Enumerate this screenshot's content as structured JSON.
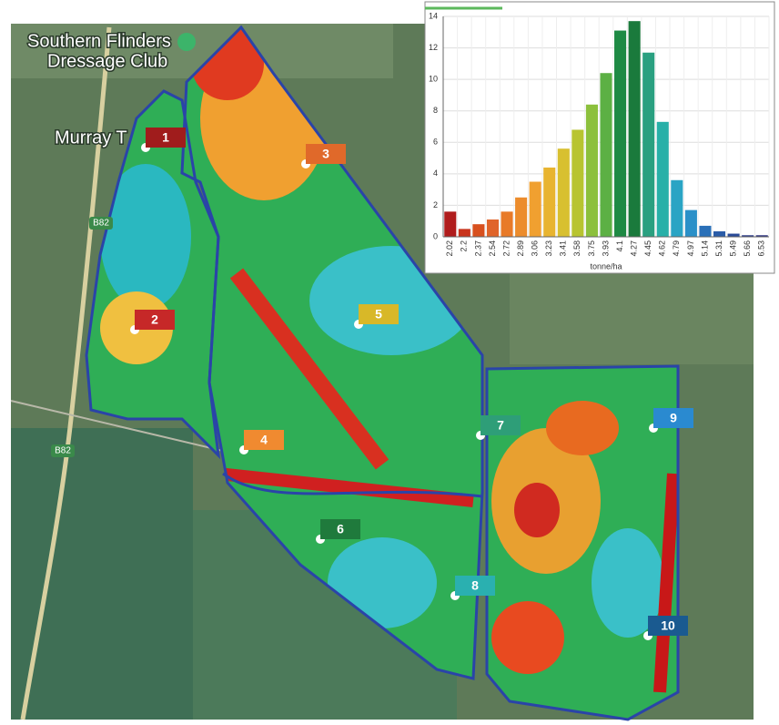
{
  "map": {
    "place_lines": [
      "Southern Flinders",
      "Dressage Club"
    ],
    "town": "Murray T",
    "roads": [
      "B82",
      "B82"
    ],
    "markers": [
      {
        "label": "1",
        "color": "#a01c1c"
      },
      {
        "label": "2",
        "color": "#c62828"
      },
      {
        "label": "3",
        "color": "#e0692a"
      },
      {
        "label": "4",
        "color": "#f08a30"
      },
      {
        "label": "5",
        "color": "#d8b828"
      },
      {
        "label": "6",
        "color": "#1f7a3c"
      },
      {
        "label": "7",
        "color": "#2e9e78"
      },
      {
        "label": "8",
        "color": "#2ab0b0"
      },
      {
        "label": "9",
        "color": "#2a8ad0"
      },
      {
        "label": "10",
        "color": "#1a5a90"
      }
    ]
  },
  "chart_data": {
    "type": "bar",
    "x_label": "tonne/ha",
    "categories": [
      "2.02",
      "2.2",
      "2.37",
      "2.54",
      "2.72",
      "2.89",
      "3.06",
      "3.23",
      "3.41",
      "3.58",
      "3.75",
      "3.93",
      "4.1",
      "4.27",
      "4.45",
      "4.62",
      "4.79",
      "4.97",
      "5.14",
      "5.31",
      "5.49",
      "5.66",
      "6.53"
    ],
    "values": [
      1.6,
      0.5,
      0.8,
      1.1,
      1.6,
      2.5,
      3.5,
      4.4,
      5.6,
      6.8,
      8.4,
      10.4,
      13.1,
      13.7,
      11.7,
      7.3,
      3.6,
      1.7,
      0.7,
      0.35,
      0.2,
      0.1,
      0.1
    ],
    "colors": [
      "#b01c1c",
      "#c8341c",
      "#d8501e",
      "#e0642a",
      "#e87a28",
      "#ec8c2c",
      "#f0a030",
      "#e8b430",
      "#d8c030",
      "#b8c430",
      "#8cc03c",
      "#5cb044",
      "#1e8a44",
      "#1a7a3c",
      "#2aa080",
      "#28b0a8",
      "#2aa4c4",
      "#2a90c8",
      "#2a70b8",
      "#2a5ca8",
      "#2a4a98",
      "#2a3a88",
      "#2a3080"
    ],
    "ylim": [
      0,
      14
    ],
    "yticks": [
      0,
      2,
      4,
      6,
      8,
      10,
      12,
      14
    ],
    "grid": true
  }
}
